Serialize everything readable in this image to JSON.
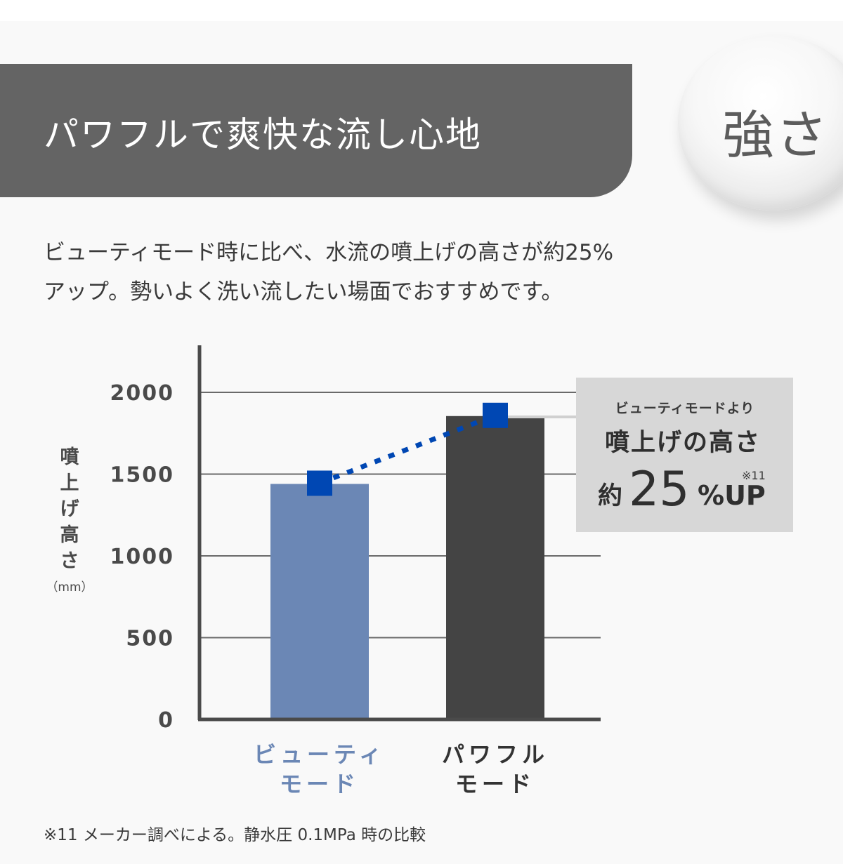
{
  "header": {
    "title": "パワフルで爽快な流し心地",
    "badge": "強さ"
  },
  "description": {
    "line1": "ビューティモード時に比べ、水流の噴上げの高さが約25%",
    "line2": "アップ。勢いよく洗い流したい場面でおすすめです。"
  },
  "chart_data": {
    "type": "bar",
    "categories": [
      {
        "line1": "ビューティ",
        "line2": "モード"
      },
      {
        "line1": "パワフル",
        "line2": "モード"
      }
    ],
    "values": [
      1440,
      1855
    ],
    "bar_colors": [
      "#6b87b5",
      "#444444"
    ],
    "category_label_colors": [
      "#6b87b5",
      "#333333"
    ],
    "marker_color": "#0047b3",
    "ylim": [
      0,
      2000
    ],
    "yticks": [
      0,
      500,
      1000,
      1500,
      2000
    ],
    "ylabel_chars": [
      "噴",
      "上",
      "げ",
      "高",
      "さ"
    ],
    "ylabel_unit": "（mm）",
    "grid": true,
    "callout": {
      "small": "ビューティモードより",
      "middle": "噴上げの高さ",
      "prefix": "約",
      "value": "25",
      "suffix": "%UP",
      "note": "※11"
    }
  },
  "footnote": "※11 メーカー調べによる。静水圧 0.1MPa 時の比較"
}
